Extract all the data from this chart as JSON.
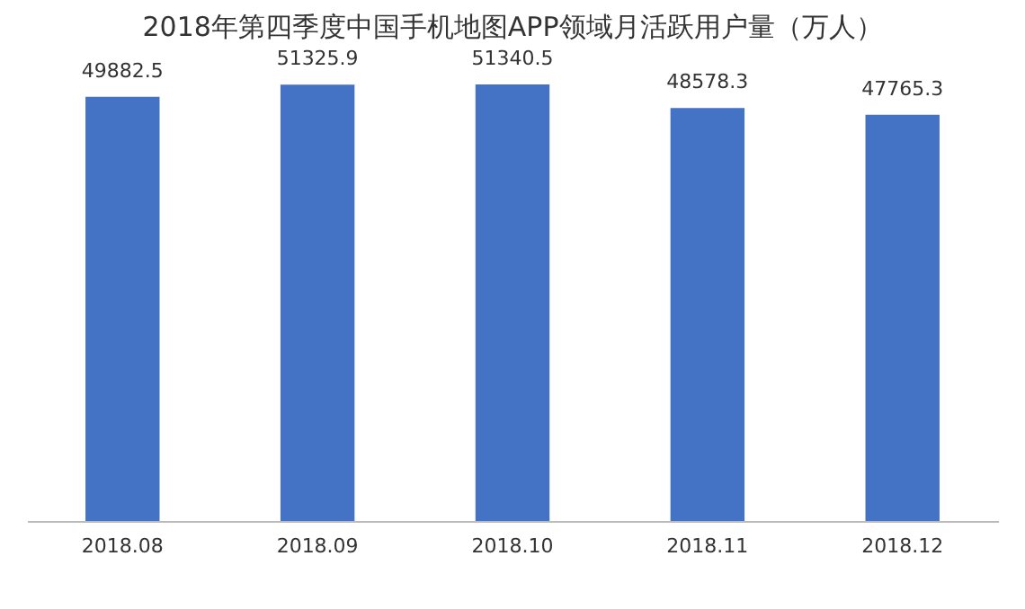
{
  "chart_data": {
    "type": "bar",
    "title": "2018年第四季度中国手机地图APP领域月活跃用户量（万人）",
    "categories": [
      "2018.08",
      "2018.09",
      "2018.10",
      "2018.11",
      "2018.12"
    ],
    "values": [
      49882.5,
      51325.9,
      51340.5,
      48578.3,
      47765.3
    ],
    "color": "#4472c4",
    "data_labels": true,
    "grid": false,
    "tick_labels": "x"
  }
}
